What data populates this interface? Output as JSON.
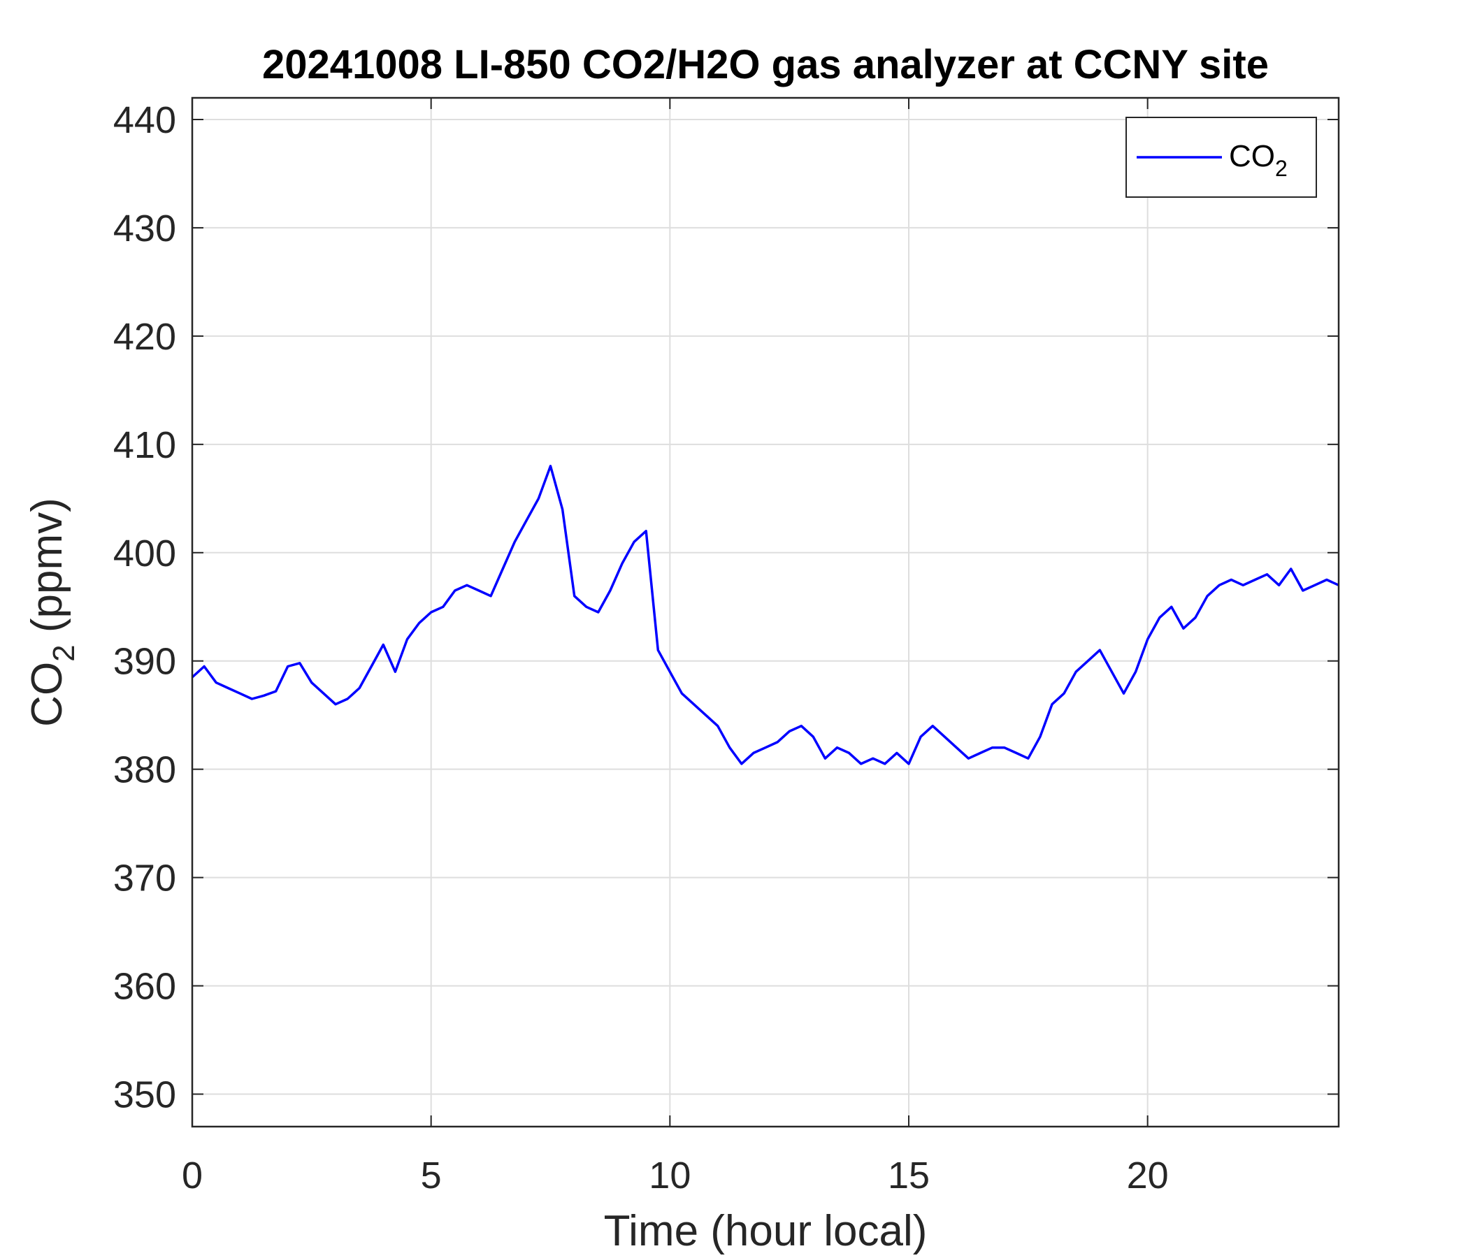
{
  "chart_data": {
    "type": "line",
    "title": "20241008 LI-850 CO2/H2O gas analyzer at CCNY site",
    "xlabel": "Time (hour local)",
    "ylabel": {
      "main": "CO",
      "sub": "2",
      "rest": " (ppmv)"
    },
    "xlim": [
      0,
      24
    ],
    "ylim": [
      347,
      442
    ],
    "xticks": [
      0,
      5,
      10,
      15,
      20
    ],
    "yticks": [
      350,
      360,
      370,
      380,
      390,
      400,
      410,
      420,
      430,
      440
    ],
    "grid": true,
    "legend_position": "top-right",
    "series": [
      {
        "name": {
          "main": "CO",
          "sub": "2"
        },
        "color": "#0000ff",
        "x": [
          0,
          0.25,
          0.5,
          0.75,
          1.0,
          1.25,
          1.5,
          1.75,
          2.0,
          2.25,
          2.5,
          2.75,
          3.0,
          3.25,
          3.5,
          3.75,
          4.0,
          4.25,
          4.5,
          4.75,
          5.0,
          5.25,
          5.5,
          5.75,
          6.0,
          6.25,
          6.5,
          6.75,
          7.0,
          7.25,
          7.5,
          7.75,
          8.0,
          8.25,
          8.5,
          8.75,
          9.0,
          9.25,
          9.5,
          9.75,
          10.0,
          10.25,
          10.5,
          10.75,
          11.0,
          11.25,
          11.5,
          11.75,
          12.0,
          12.25,
          12.5,
          12.75,
          13.0,
          13.25,
          13.5,
          13.75,
          14.0,
          14.25,
          14.5,
          14.75,
          15.0,
          15.25,
          15.5,
          15.75,
          16.0,
          16.25,
          16.5,
          16.75,
          17.0,
          17.25,
          17.5,
          17.75,
          18.0,
          18.25,
          18.5,
          18.75,
          19.0,
          19.25,
          19.5,
          19.75,
          20.0,
          20.25,
          20.5,
          20.75,
          21.0,
          21.25,
          21.5,
          21.75,
          22.0,
          22.25,
          22.5,
          22.75,
          23.0,
          23.25,
          23.5,
          23.75,
          24.0
        ],
        "y": [
          388.5,
          389.5,
          388,
          387.5,
          387,
          386.5,
          386.8,
          387.2,
          389.5,
          389.8,
          388,
          387,
          386,
          386.5,
          387.5,
          389.5,
          391.5,
          389,
          392,
          393.5,
          394.5,
          395,
          396.5,
          397,
          396.5,
          396,
          398.5,
          401,
          403,
          405,
          408,
          404,
          396,
          395,
          394.5,
          396.5,
          399,
          401,
          402,
          391,
          389,
          387,
          386,
          385,
          384,
          382,
          380.5,
          381.5,
          382,
          382.5,
          383.5,
          384,
          383,
          381,
          382,
          381.5,
          380.5,
          381,
          380.5,
          381.5,
          380.5,
          383,
          384,
          383,
          382,
          381,
          381.5,
          382,
          382,
          381.5,
          381,
          383,
          386,
          387,
          389,
          390,
          391,
          389,
          387,
          389,
          392,
          394,
          395,
          393,
          394,
          396,
          397,
          397.5,
          397,
          397.5,
          398,
          397,
          398.5,
          396.5,
          397,
          397.5,
          397
        ]
      }
    ]
  }
}
